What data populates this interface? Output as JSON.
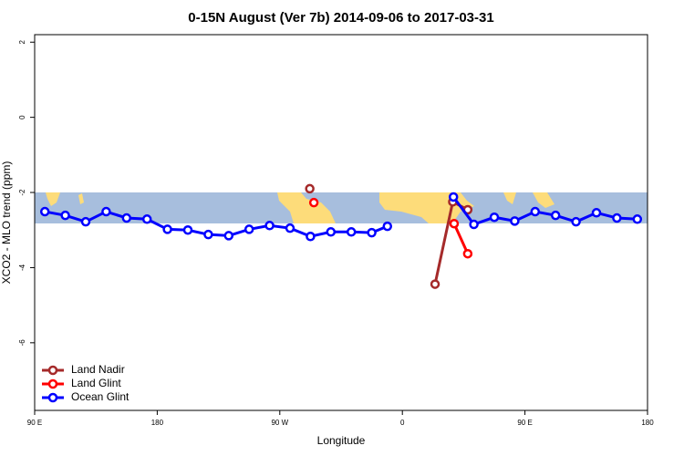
{
  "chart_data": {
    "type": "line",
    "title": "0-15N August (Ver 7b)   2014-09-06 to 2017-03-31",
    "x_label": "Longitude",
    "y_label": "XCO2 - MLO trend (ppm)",
    "xlim": [
      90,
      540
    ],
    "xticks": [
      {
        "value": 90,
        "label": "90 E"
      },
      180,
      {
        "value": 270,
        "label": "90 W"
      },
      {
        "value": 360,
        "label": "0"
      },
      {
        "value": 450,
        "label": "90 E"
      },
      {
        "value": 540,
        "label": "180"
      }
    ],
    "ylim": [
      -7.8,
      2.2
    ],
    "yticks": [
      -6,
      -4,
      -2,
      0,
      2
    ],
    "legend": "bottom-left",
    "series": [
      {
        "name": "Land Nadir",
        "color": "#a52a2a",
        "x": [
          292,
          350,
          384,
          397,
          408
        ],
        "values": [
          -1.9,
          null,
          -4.44,
          -2.25,
          -2.46
        ]
      },
      {
        "name": "Land Glint",
        "color": "#ff0000",
        "x": [
          295,
          350,
          398,
          408
        ],
        "values": [
          -2.27,
          null,
          -2.83,
          -3.63
        ]
      },
      {
        "name": "Ocean Glint",
        "color": "#0000ff",
        "x": [
          97.5,
          112.5,
          127.5,
          142.5,
          157.5,
          172.5,
          187.5,
          202.5,
          217.5,
          232.5,
          247.5,
          262.5,
          277.5,
          292.5,
          307.5,
          322.5,
          337.5,
          349,
          375,
          397.5,
          412.5,
          427.5,
          442.5,
          457.5,
          472.5,
          487.5,
          502.5,
          517.5,
          532.5
        ],
        "values": [
          -2.51,
          -2.61,
          -2.78,
          -2.51,
          -2.68,
          -2.71,
          -2.98,
          -3.0,
          -3.12,
          -3.15,
          -2.98,
          -2.88,
          -2.95,
          -3.17,
          -3.05,
          -3.05,
          -3.07,
          -2.9,
          null,
          -2.12,
          -2.85,
          -2.66,
          -2.76,
          -2.51,
          -2.61,
          -2.78,
          -2.54,
          -2.68,
          -2.71
        ]
      }
    ]
  }
}
